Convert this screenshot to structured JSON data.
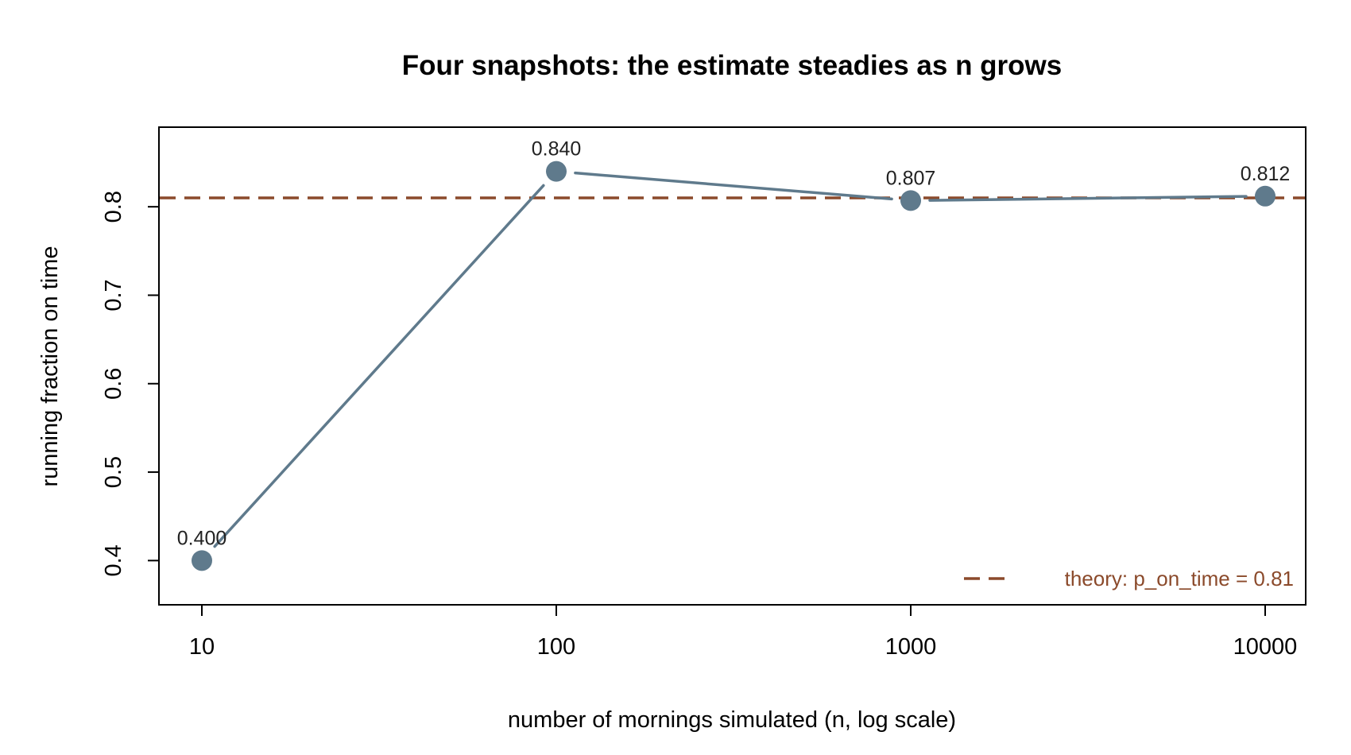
{
  "chart_data": {
    "type": "line",
    "title": "Four snapshots: the estimate steadies as n grows",
    "xlabel": "number of mornings simulated (n, log scale)",
    "ylabel": "running fraction on time",
    "x_scale": "log",
    "x": [
      10,
      100,
      1000,
      10000
    ],
    "x_tick_labels": [
      "10",
      "100",
      "1000",
      "10000"
    ],
    "y_ticks": [
      0.4,
      0.5,
      0.6,
      0.7,
      0.8
    ],
    "y_tick_labels": [
      "0.4",
      "0.5",
      "0.6",
      "0.7",
      "0.8"
    ],
    "ylim": [
      0.35,
      0.89
    ],
    "series": [
      {
        "values": [
          0.4,
          0.84,
          0.807,
          0.812
        ],
        "point_labels": [
          "0.400",
          "0.840",
          "0.807",
          "0.812"
        ],
        "color": "#5f7a8c"
      }
    ],
    "reference_line": {
      "value": 0.81,
      "label": "theory: p_on_time = 0.81",
      "color": "#8b4a2b",
      "style": "dashed"
    },
    "legend_position": "bottom-right",
    "grid": false
  }
}
